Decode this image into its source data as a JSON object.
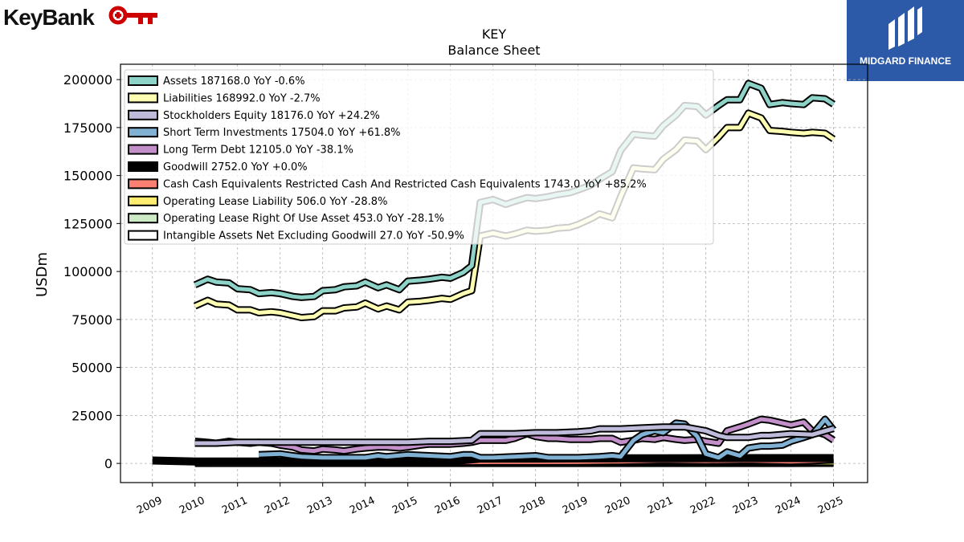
{
  "header": {
    "logo_text": "KeyBank",
    "partner_logo_text": "MIDGARD FINANCE"
  },
  "chart_data": {
    "type": "line",
    "title": "KEY",
    "subtitle": "Balance  Sheet",
    "xlabel": "",
    "ylabel": "USDm",
    "xlim": [
      2008.25,
      2025.8
    ],
    "ylim": [
      -10000,
      208000
    ],
    "grid": true,
    "legend_position": "top-left",
    "yticks": [
      0,
      25000,
      50000,
      75000,
      100000,
      125000,
      150000,
      175000,
      200000
    ],
    "ytick_labels": [
      "0",
      "25000",
      "50000",
      "75000",
      "100000",
      "125000",
      "150000",
      "175000",
      "200000"
    ],
    "xticks": [
      2009,
      2010,
      2011,
      2012,
      2013,
      2014,
      2015,
      2016,
      2017,
      2018,
      2019,
      2020,
      2021,
      2022,
      2023,
      2024,
      2025
    ],
    "xtick_labels": [
      "2009",
      "2010",
      "2011",
      "2012",
      "2013",
      "2014",
      "2015",
      "2016",
      "2017",
      "2018",
      "2019",
      "2020",
      "2021",
      "2022",
      "2023",
      "2024",
      "2025"
    ],
    "series": [
      {
        "name": "Assets",
        "legend": "Assets  187168.0 YoY -0.6%",
        "color": "#8dd3c7",
        "x": [
          2010.0,
          2010.3,
          2010.5,
          2010.8,
          2011.0,
          2011.3,
          2011.5,
          2011.8,
          2012.0,
          2012.3,
          2012.5,
          2012.8,
          2013.0,
          2013.3,
          2013.5,
          2013.8,
          2014.0,
          2014.3,
          2014.5,
          2014.8,
          2015.0,
          2015.3,
          2015.5,
          2015.8,
          2016.0,
          2016.3,
          2016.5,
          2016.7,
          2017.0,
          2017.3,
          2017.5,
          2017.8,
          2018.0,
          2018.3,
          2018.5,
          2018.8,
          2019.0,
          2019.3,
          2019.5,
          2019.8,
          2020.0,
          2020.3,
          2020.5,
          2020.8,
          2021.0,
          2021.3,
          2021.5,
          2021.8,
          2022.0,
          2022.3,
          2022.5,
          2022.8,
          2023.0,
          2023.3,
          2023.5,
          2023.8,
          2024.0,
          2024.3,
          2024.5,
          2024.8,
          2025.0
        ],
        "y": [
          93000,
          96000,
          94500,
          94000,
          91000,
          90500,
          88500,
          89000,
          88500,
          87000,
          86500,
          87000,
          90000,
          90500,
          92000,
          92500,
          94500,
          91500,
          93000,
          90500,
          95000,
          95500,
          96000,
          97000,
          96500,
          99500,
          103000,
          136000,
          137500,
          135000,
          136500,
          138500,
          138000,
          139000,
          140000,
          141000,
          142500,
          145000,
          148000,
          152000,
          163000,
          171500,
          171000,
          170500,
          176000,
          181500,
          186500,
          186000,
          181500,
          186500,
          189500,
          189500,
          198000,
          195500,
          187000,
          188000,
          187500,
          187000,
          190500,
          190000,
          187168
        ]
      },
      {
        "name": "Liabilities",
        "legend": "Liabilities  168992.0 YoY -2.7%",
        "color": "#ffffb3",
        "x": [
          2010.0,
          2010.3,
          2010.5,
          2010.8,
          2011.0,
          2011.3,
          2011.5,
          2011.8,
          2012.0,
          2012.3,
          2012.5,
          2012.8,
          2013.0,
          2013.3,
          2013.5,
          2013.8,
          2014.0,
          2014.3,
          2014.5,
          2014.8,
          2015.0,
          2015.3,
          2015.5,
          2015.8,
          2016.0,
          2016.3,
          2016.5,
          2016.7,
          2017.0,
          2017.3,
          2017.5,
          2017.8,
          2018.0,
          2018.3,
          2018.5,
          2018.8,
          2019.0,
          2019.3,
          2019.5,
          2019.8,
          2020.0,
          2020.3,
          2020.5,
          2020.8,
          2021.0,
          2021.3,
          2021.5,
          2021.8,
          2022.0,
          2022.3,
          2022.5,
          2022.8,
          2023.0,
          2023.3,
          2023.5,
          2023.8,
          2024.0,
          2024.3,
          2024.5,
          2024.8,
          2025.0
        ],
        "y": [
          82000,
          85000,
          83000,
          82500,
          80000,
          80000,
          78500,
          79000,
          78500,
          77000,
          76000,
          76500,
          79500,
          79500,
          81000,
          81500,
          83500,
          80500,
          82000,
          80000,
          84000,
          84500,
          85000,
          86000,
          85500,
          88500,
          90000,
          118500,
          120000,
          118500,
          119500,
          121500,
          121000,
          121500,
          122500,
          123000,
          124500,
          127500,
          130000,
          128000,
          139000,
          154000,
          153500,
          153000,
          158500,
          163500,
          168500,
          168000,
          163500,
          170000,
          175000,
          175000,
          182500,
          180000,
          173500,
          173000,
          172500,
          172000,
          172500,
          172000,
          168992
        ]
      },
      {
        "name": "Stockholders Equity",
        "legend": "Stockholders Equity  18176.0 YoY +24.2%",
        "color": "#bebada",
        "x": [
          2010.0,
          2010.5,
          2011.0,
          2011.5,
          2012.0,
          2012.5,
          2013.0,
          2013.5,
          2014.0,
          2014.5,
          2015.0,
          2015.5,
          2016.0,
          2016.5,
          2016.7,
          2017.0,
          2017.5,
          2018.0,
          2018.5,
          2019.0,
          2019.3,
          2019.5,
          2020.0,
          2020.5,
          2021.0,
          2021.5,
          2022.0,
          2022.3,
          2022.5,
          2023.0,
          2023.3,
          2023.5,
          2024.0,
          2024.5,
          2025.0
        ],
        "y": [
          10500,
          10500,
          11000,
          11000,
          11000,
          11000,
          11000,
          11000,
          11000,
          11000,
          11000,
          11500,
          11500,
          12000,
          15500,
          15500,
          15500,
          16000,
          16000,
          16500,
          17000,
          18000,
          18000,
          18500,
          19000,
          19000,
          17000,
          14500,
          13500,
          13500,
          14500,
          14500,
          15500,
          15000,
          18176
        ]
      },
      {
        "name": "Short Term Investments",
        "legend": "Short Term Investments  17504.0 YoY +61.8%",
        "color": "#80b1d3",
        "x": [
          2011.5,
          2012.0,
          2012.3,
          2012.5,
          2013.0,
          2013.5,
          2014.0,
          2014.3,
          2014.5,
          2015.0,
          2015.5,
          2016.0,
          2016.3,
          2016.5,
          2016.7,
          2017.0,
          2017.5,
          2018.0,
          2018.3,
          2018.5,
          2019.0,
          2019.5,
          2019.8,
          2020.0,
          2020.3,
          2020.5,
          2020.8,
          2021.0,
          2021.3,
          2021.5,
          2021.8,
          2022.0,
          2022.3,
          2022.5,
          2022.8,
          2023.0,
          2023.3,
          2023.5,
          2023.8,
          2024.0,
          2024.3,
          2024.5,
          2024.8,
          2025.0
        ],
        "y": [
          4500,
          5000,
          4000,
          3500,
          3000,
          3000,
          3000,
          4000,
          3500,
          4500,
          4000,
          3500,
          4500,
          4500,
          3000,
          3000,
          3500,
          4000,
          3000,
          3000,
          3000,
          3500,
          4000,
          3500,
          12000,
          15000,
          17000,
          16000,
          21000,
          20500,
          14000,
          5000,
          3000,
          6000,
          4000,
          8000,
          9000,
          9000,
          9500,
          11500,
          13500,
          15000,
          23000,
          17504
        ]
      },
      {
        "name": "Long Term Debt",
        "legend": "Long Term Debt  12105.0 YoY -38.1%",
        "color": "#c28fc8",
        "x": [
          2010.0,
          2010.3,
          2010.5,
          2010.8,
          2011.0,
          2011.3,
          2011.5,
          2011.8,
          2012.0,
          2012.3,
          2012.5,
          2012.8,
          2013.0,
          2013.3,
          2013.5,
          2013.8,
          2014.0,
          2014.3,
          2014.5,
          2014.8,
          2015.0,
          2015.3,
          2015.5,
          2015.8,
          2016.0,
          2016.3,
          2016.5,
          2016.7,
          2017.0,
          2017.3,
          2017.5,
          2017.8,
          2018.0,
          2018.3,
          2018.5,
          2018.8,
          2019.0,
          2019.3,
          2019.5,
          2019.8,
          2020.0,
          2020.3,
          2020.5,
          2020.8,
          2021.0,
          2021.3,
          2021.5,
          2021.8,
          2022.0,
          2022.3,
          2022.5,
          2022.8,
          2023.0,
          2023.3,
          2023.5,
          2023.8,
          2024.0,
          2024.3,
          2024.5,
          2024.8,
          2025.0
        ],
        "y": [
          11500,
          11000,
          10500,
          11500,
          11000,
          10500,
          11000,
          10500,
          9500,
          8500,
          7000,
          6500,
          7500,
          7000,
          6500,
          7500,
          8000,
          8500,
          8500,
          8000,
          8500,
          9500,
          10000,
          10000,
          10000,
          10500,
          11000,
          12000,
          12000,
          12000,
          13000,
          15500,
          14000,
          13000,
          13000,
          12500,
          12500,
          12500,
          13000,
          13000,
          11000,
          12000,
          13000,
          12500,
          13500,
          12500,
          12000,
          12500,
          11500,
          10500,
          17000,
          19000,
          20500,
          23000,
          22500,
          21000,
          20000,
          21500,
          17000,
          15000,
          12105
        ]
      },
      {
        "name": "Goodwill",
        "legend": "Goodwill  2752.0 YoY +0.0%",
        "color": "#000000",
        "x": [
          2009.0,
          2010.0,
          2011.0,
          2012.0,
          2013.0,
          2014.0,
          2015.0,
          2016.0,
          2016.7,
          2017.0,
          2018.0,
          2019.0,
          2020.0,
          2021.0,
          2022.0,
          2023.0,
          2024.0,
          2025.0
        ],
        "y": [
          1500,
          1000,
          1000,
          1000,
          1000,
          1000,
          1000,
          1100,
          2500,
          2500,
          2500,
          2600,
          2650,
          2650,
          2700,
          2750,
          2752,
          2752
        ]
      },
      {
        "name": "Cash Cash Equivalents Restricted Cash And Restricted Cash Equivalents",
        "legend": "Cash Cash Equivalents Restricted Cash And Restricted Cash Equivalents  1743.0 YoY +85.2%",
        "color": "#fb8072",
        "x": [
          2010.0,
          2011.0,
          2012.0,
          2013.0,
          2014.0,
          2015.0,
          2016.0,
          2017.0,
          2018.0,
          2019.0,
          2020.0,
          2021.0,
          2022.0,
          2023.0,
          2024.0,
          2025.0
        ],
        "y": [
          800,
          1000,
          900,
          700,
          700,
          700,
          600,
          700,
          700,
          800,
          1000,
          1500,
          1200,
          1500,
          1000,
          1743
        ]
      },
      {
        "name": "Operating Lease Liability",
        "legend": "Operating Lease Liability  506.0 YoY -28.8%",
        "color": "#ffed6f",
        "x": [
          2019.0,
          2020.0,
          2021.0,
          2022.0,
          2023.0,
          2024.0,
          2025.0
        ],
        "y": [
          800,
          750,
          700,
          650,
          680,
          700,
          506
        ]
      },
      {
        "name": "Operating Lease Right Of Use Asset",
        "legend": "Operating Lease Right Of Use Asset  453.0 YoY -28.1%",
        "color": "#ccebc5",
        "x": [
          2019.0,
          2020.0,
          2021.0,
          2022.0,
          2023.0,
          2024.0,
          2025.0
        ],
        "y": [
          700,
          650,
          600,
          600,
          620,
          630,
          453
        ]
      },
      {
        "name": "Intangible Assets Net Excluding Goodwill",
        "legend": "Intangible Assets Net Excluding Goodwill  27.0 YoY -50.9%",
        "color": "#ffffff",
        "x": [
          2010.0,
          2011.0,
          2012.0,
          2013.0,
          2014.0,
          2015.0,
          2016.0,
          2017.0,
          2018.0,
          2019.0,
          2020.0,
          2021.0,
          2022.0,
          2023.0,
          2024.0,
          2025.0
        ],
        "y": [
          0,
          0,
          0,
          0,
          0,
          0,
          0,
          0,
          0,
          0,
          0,
          0,
          0,
          0,
          0,
          27
        ]
      }
    ]
  }
}
